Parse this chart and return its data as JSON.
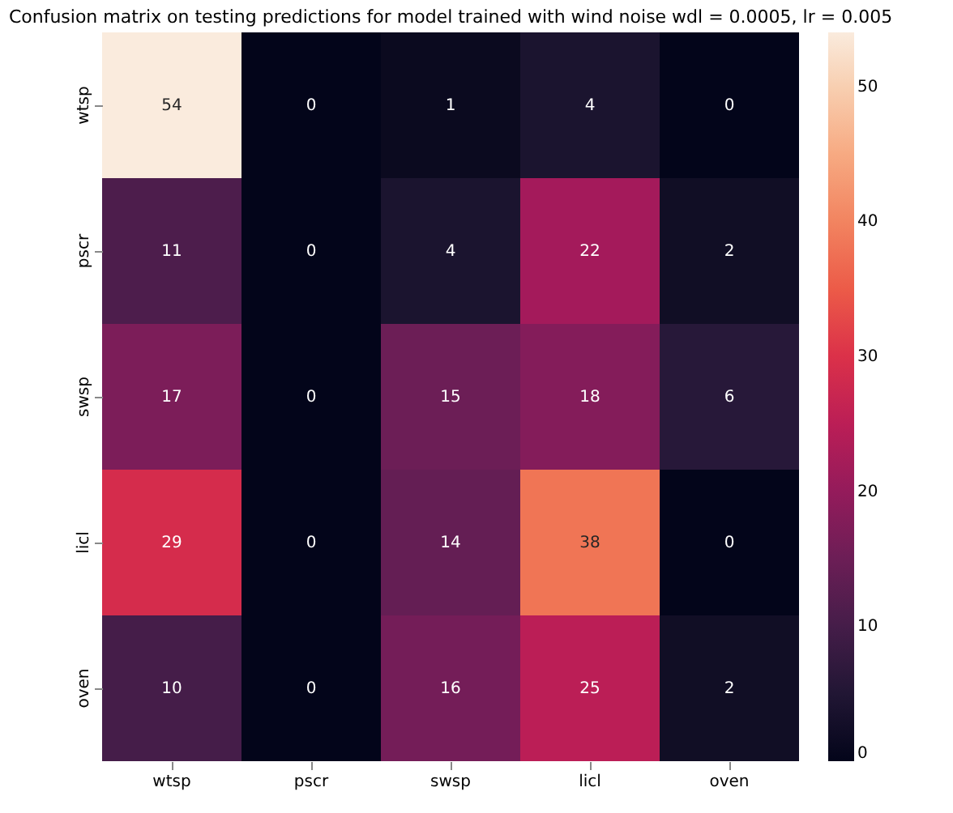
{
  "chart_data": {
    "type": "heatmap",
    "title": "Confusion matrix on testing predictions for model trained with wind noise wdl = 0.0005, lr = 0.005",
    "categories": [
      "wtsp",
      "pscr",
      "swsp",
      "licl",
      "oven"
    ],
    "y_categories": [
      "wtsp",
      "pscr",
      "swsp",
      "licl",
      "oven"
    ],
    "cells": [
      [
        54,
        0,
        1,
        4,
        0
      ],
      [
        11,
        0,
        4,
        22,
        2
      ],
      [
        17,
        0,
        15,
        18,
        6
      ],
      [
        29,
        0,
        14,
        38,
        0
      ],
      [
        10,
        0,
        16,
        25,
        2
      ]
    ],
    "data_labels": true,
    "clim": [
      0,
      54
    ],
    "cticks": [
      0,
      10,
      20,
      30,
      40,
      50
    ]
  }
}
